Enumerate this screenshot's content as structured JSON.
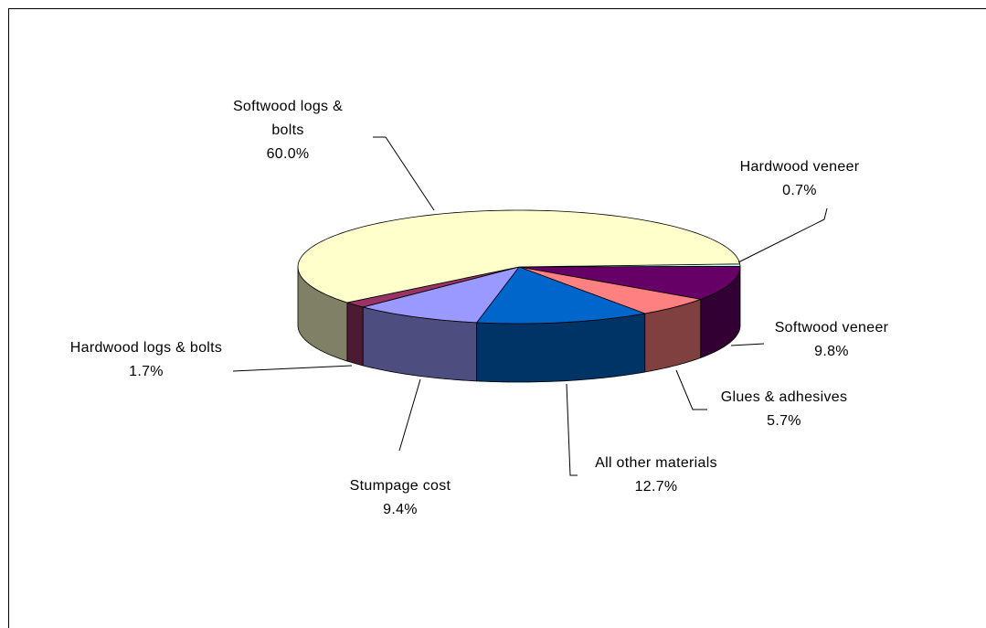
{
  "chart_data": {
    "type": "pie3d",
    "categories": [
      "Hardwood veneer",
      "Softwood veneer",
      "Glues & adhesives",
      "All other materials",
      "Stumpage cost",
      "Hardwood logs & bolts",
      "Softwood logs & bolts"
    ],
    "values": [
      0.7,
      9.8,
      5.7,
      12.7,
      9.4,
      1.7,
      60.0
    ],
    "value_labels": [
      "0.7%",
      "9.8%",
      "5.7%",
      "12.7%",
      "9.4%",
      "1.7%",
      "60.0%"
    ],
    "colors": [
      "#ccffff",
      "#660066",
      "#ff8080",
      "#0066cc",
      "#9999ff",
      "#993366",
      "#ffffcc"
    ]
  }
}
